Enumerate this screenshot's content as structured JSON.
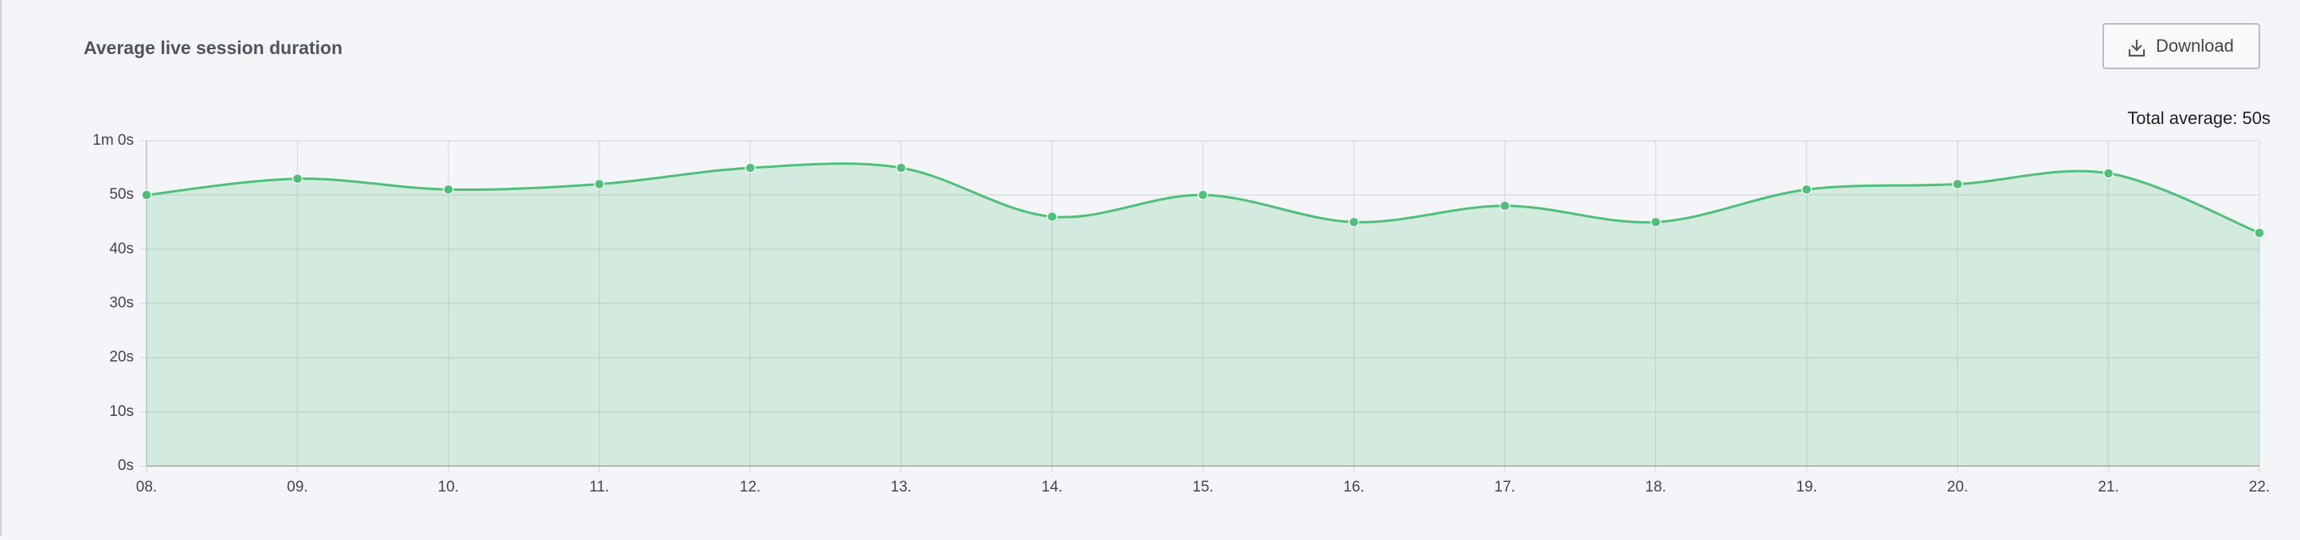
{
  "chart_data": {
    "type": "area",
    "title": "Average live session duration",
    "button": "Download",
    "annotation": "Total average: 50s",
    "categories": [
      "08.",
      "09.",
      "10.",
      "11.",
      "12.",
      "13.",
      "14.",
      "15.",
      "16.",
      "17.",
      "18.",
      "19.",
      "20.",
      "21.",
      "22."
    ],
    "values": [
      50,
      53,
      51,
      52,
      55,
      55,
      46,
      50,
      45,
      48,
      45,
      51,
      52,
      54,
      43
    ],
    "color": "#4fbf79",
    "ylim": [
      0,
      60
    ],
    "yticks": [
      {
        "value": 0,
        "label": "0s"
      },
      {
        "value": 10,
        "label": "10s"
      },
      {
        "value": 20,
        "label": "20s"
      },
      {
        "value": 30,
        "label": "30s"
      },
      {
        "value": 40,
        "label": "40s"
      },
      {
        "value": 50,
        "label": "50s"
      },
      {
        "value": 60,
        "label": "1m 0s"
      }
    ],
    "grid": true
  }
}
